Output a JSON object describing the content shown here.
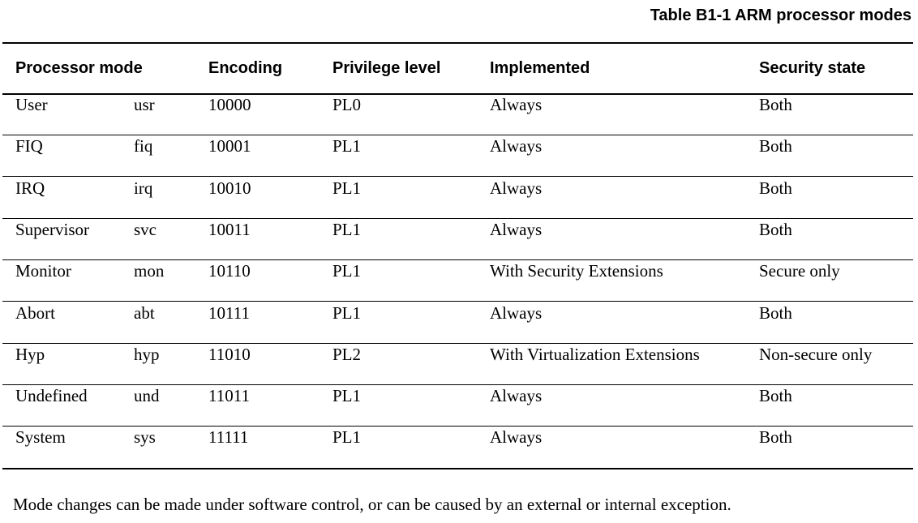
{
  "title": "Table B1-1 ARM processor modes",
  "headers": [
    "Processor mode",
    "Encoding",
    "Privilege level",
    "Implemented",
    "Security state"
  ],
  "rows": [
    [
      "User",
      "usr",
      "10000",
      "PL0",
      "Always",
      "Both"
    ],
    [
      "FIQ",
      "fiq",
      "10001",
      "PL1",
      "Always",
      "Both"
    ],
    [
      "IRQ",
      "irq",
      "10010",
      "PL1",
      "Always",
      "Both"
    ],
    [
      "Supervisor",
      "svc",
      "10011",
      "PL1",
      "Always",
      "Both"
    ],
    [
      "Monitor",
      "mon",
      "10110",
      "PL1",
      "With Security Extensions",
      "Secure only"
    ],
    [
      "Abort",
      "abt",
      "10111",
      "PL1",
      "Always",
      "Both"
    ],
    [
      "Hyp",
      "hyp",
      "11010",
      "PL2",
      "With Virtualization Extensions",
      "Non-secure only"
    ],
    [
      "Undefined",
      "und",
      "11011",
      "PL1",
      "Always",
      "Both"
    ],
    [
      "System",
      "sys",
      "11111",
      "PL1",
      "Always",
      "Both"
    ]
  ],
  "note": "Mode changes can be made under software control, or can be caused by an external or internal exception."
}
